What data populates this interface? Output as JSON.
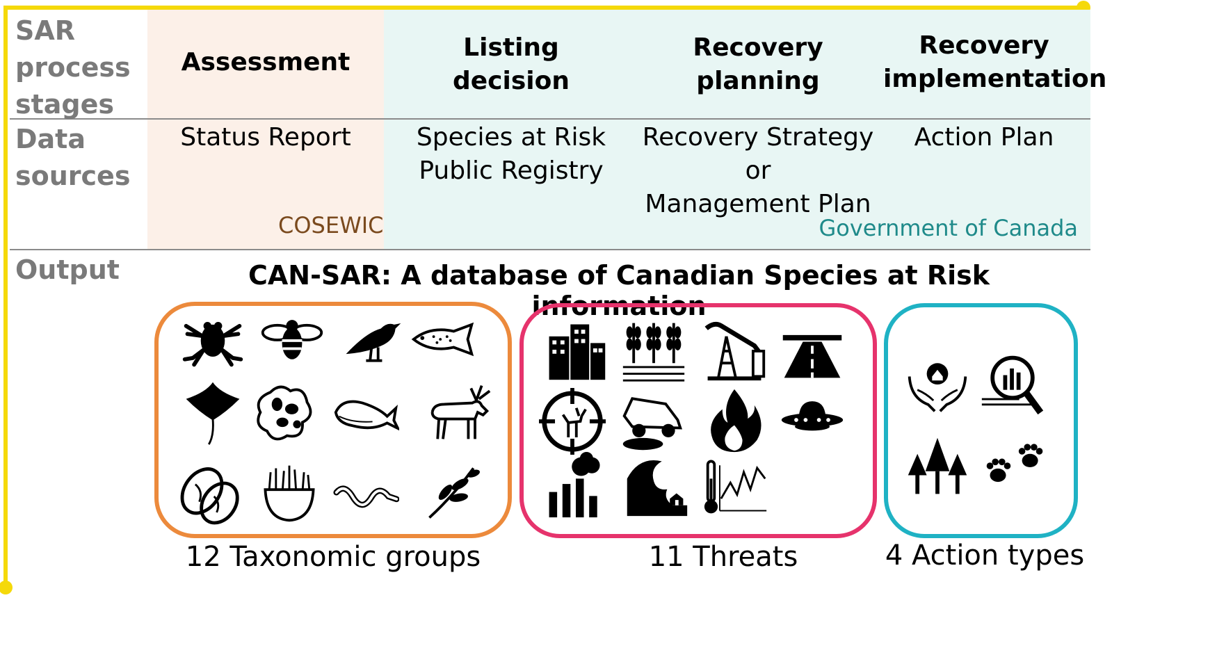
{
  "colors": {
    "timeline": "#f5d90a",
    "assessment_bg": "#fcf0e8",
    "government_bg": "#e8f6f4",
    "row_label": "#7a7a7a",
    "cosewic": "#7a4a1e",
    "government": "#1f8a8a",
    "taxa_border": "#ec8a3c",
    "threats_border": "#e6336c",
    "actions_border": "#1fb2c4"
  },
  "rows": {
    "stages_label": [
      "SAR",
      "process",
      "stages"
    ],
    "sources_label": [
      "Data",
      "sources"
    ],
    "output_label": "Output"
  },
  "stages": [
    {
      "line1": "Assessment",
      "line2": ""
    },
    {
      "line1": "Listing",
      "line2": "decision"
    },
    {
      "line1": "Recovery",
      "line2": "planning"
    },
    {
      "line1": "Recovery",
      "line2": "implementation"
    }
  ],
  "sources": [
    {
      "lines": [
        "Status Report"
      ]
    },
    {
      "lines": [
        "Species at Risk",
        "Public Registry"
      ]
    },
    {
      "lines": [
        "Recovery Strategy",
        "or",
        "Management Plan"
      ]
    },
    {
      "lines": [
        "Action Plan"
      ]
    }
  ],
  "organizations": {
    "assessment": "COSEWIC",
    "government": "Government of Canada"
  },
  "output": {
    "title": "CAN-SAR: A database of Canadian Species at Risk information",
    "groups": [
      {
        "caption": "12 Taxonomic groups",
        "icons": [
          "frog-icon",
          "bee-icon",
          "bird-icon",
          "fish-icon",
          "ray-icon",
          "lichen-icon",
          "whale-icon",
          "moose-icon",
          "mussel-icon",
          "moss-icon",
          "worm-icon",
          "plant-icon"
        ]
      },
      {
        "caption": "11 Threats",
        "icons": [
          "buildings-icon",
          "agriculture-icon",
          "oil-pump-icon",
          "road-icon",
          "hunting-target-icon",
          "vehicle-icon",
          "fire-icon",
          "ufo-icon",
          "pollution-icon",
          "tsunami-icon",
          "climate-icon"
        ]
      },
      {
        "caption": "4 Action types",
        "icons": [
          "habitat-protection-icon",
          "research-icon",
          "forest-icon",
          "paw-prints-icon"
        ]
      }
    ]
  }
}
